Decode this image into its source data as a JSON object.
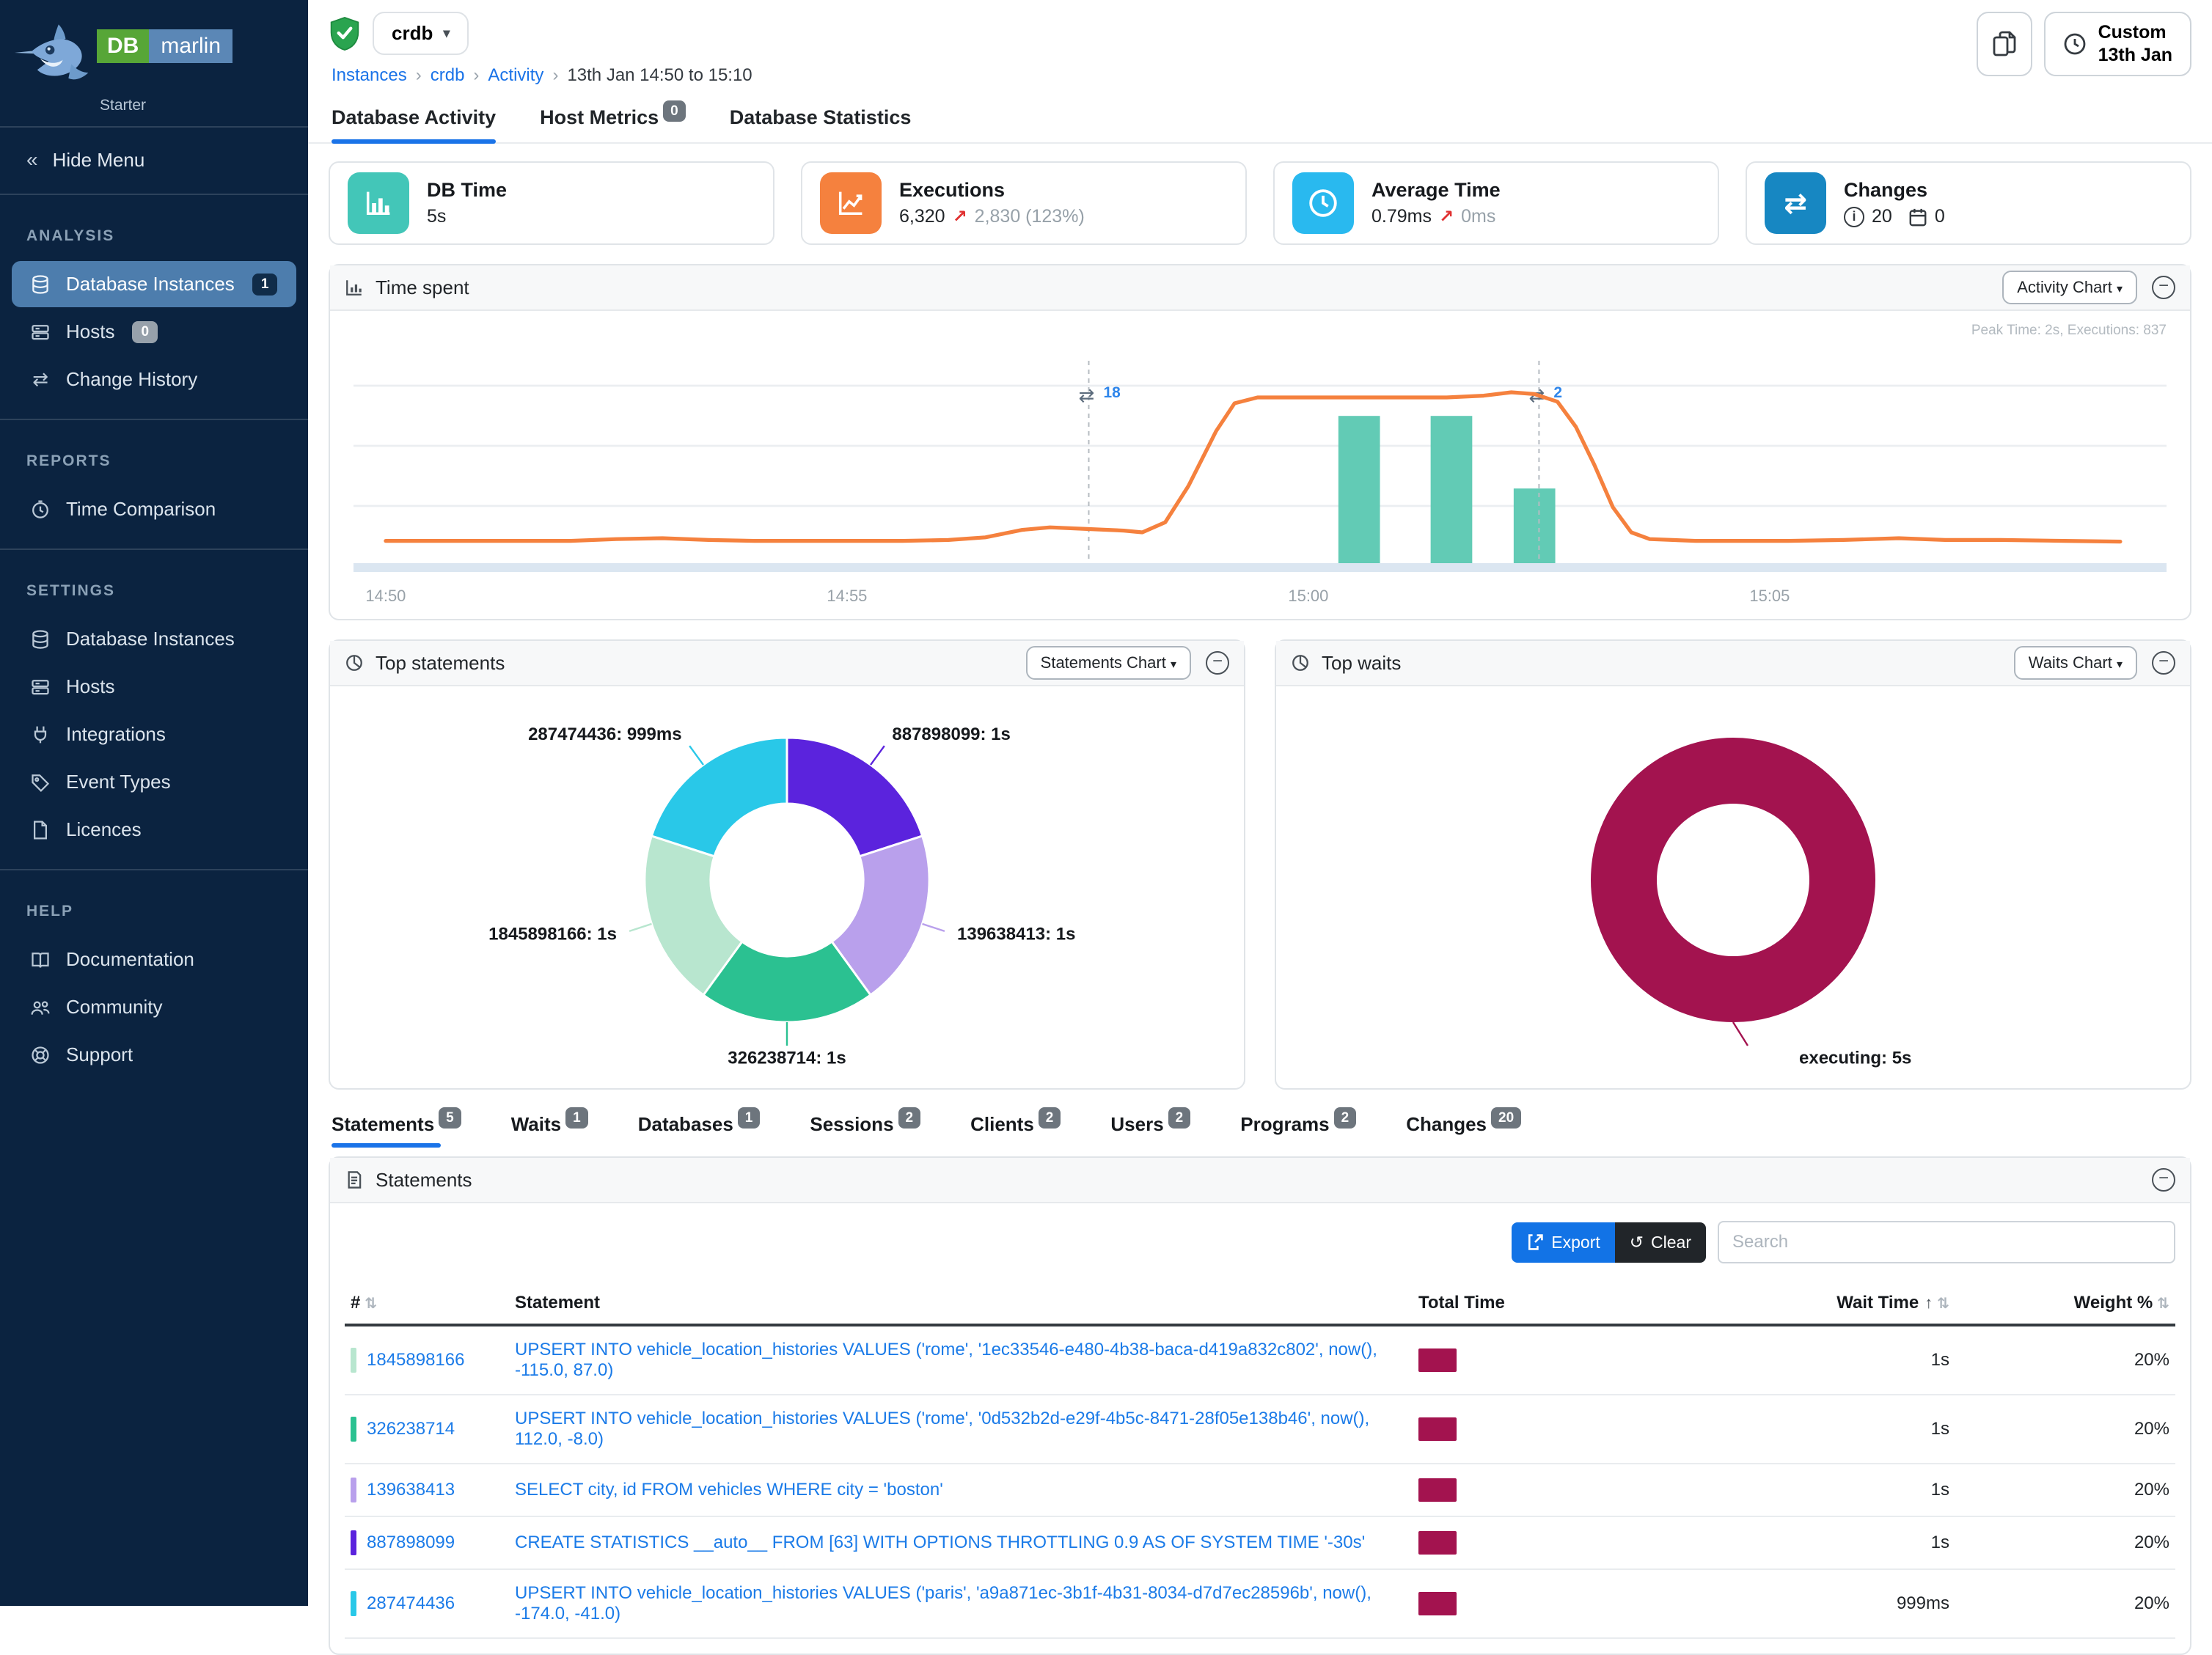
{
  "colors": {
    "accent": "#1a73e8",
    "sidebar_bg": "#0b2340",
    "sidebar_active": "#4d7dad",
    "total_time_bar": "#a3134f",
    "line_orange": "#f5813e",
    "bar_teal": "#62cbb5"
  },
  "brand": {
    "db": "DB",
    "marlin": "marlin",
    "edition": "Starter"
  },
  "sidebar": {
    "hide_menu": "Hide Menu",
    "sections": [
      {
        "title": "ANALYSIS",
        "items": [
          {
            "label": "Database Instances",
            "badge": "1"
          },
          {
            "label": "Hosts",
            "badge": "0"
          },
          {
            "label": "Change History"
          }
        ]
      },
      {
        "title": "REPORTS",
        "items": [
          {
            "label": "Time Comparison"
          }
        ]
      },
      {
        "title": "SETTINGS",
        "items": [
          {
            "label": "Database Instances"
          },
          {
            "label": "Hosts"
          },
          {
            "label": "Integrations"
          },
          {
            "label": "Event Types"
          },
          {
            "label": "Licences"
          }
        ]
      },
      {
        "title": "HELP",
        "items": [
          {
            "label": "Documentation"
          },
          {
            "label": "Community"
          },
          {
            "label": "Support"
          }
        ]
      }
    ]
  },
  "topbar": {
    "instance": "crdb",
    "breadcrumb": [
      "Instances",
      "crdb",
      "Activity",
      "13th Jan 14:50 to 15:10"
    ],
    "time_button": {
      "line1": "Custom",
      "line2": "13th Jan"
    }
  },
  "main_tabs": [
    {
      "label": "Database Activity"
    },
    {
      "label": "Host Metrics",
      "badge": "0"
    },
    {
      "label": "Database Statistics"
    }
  ],
  "cards": [
    {
      "title": "DB Time",
      "value": "5s",
      "icon_color": "#43c6b8"
    },
    {
      "title": "Executions",
      "value": "6,320",
      "delta": "2,830 (123%)",
      "icon_color": "#f5813e"
    },
    {
      "title": "Average Time",
      "value": "0.79ms",
      "delta": "0ms",
      "icon_color": "#29b9ef"
    },
    {
      "title": "Changes",
      "info_count": "20",
      "calendar_count": "0",
      "icon_color": "#1787c2"
    }
  ],
  "panels": {
    "time_spent": {
      "title": "Time spent",
      "button": "Activity Chart"
    },
    "top_statements": {
      "title": "Top statements",
      "button": "Statements Chart"
    },
    "top_waits": {
      "title": "Top waits",
      "button": "Waits Chart"
    },
    "statements": {
      "title": "Statements",
      "export": "Export",
      "clear": "Clear",
      "search_placeholder": "Search"
    }
  },
  "detail_tabs": [
    {
      "label": "Statements",
      "badge": "5"
    },
    {
      "label": "Waits",
      "badge": "1"
    },
    {
      "label": "Databases",
      "badge": "1"
    },
    {
      "label": "Sessions",
      "badge": "2"
    },
    {
      "label": "Clients",
      "badge": "2"
    },
    {
      "label": "Users",
      "badge": "2"
    },
    {
      "label": "Programs",
      "badge": "2"
    },
    {
      "label": "Changes",
      "badge": "20"
    }
  ],
  "table": {
    "headers": {
      "num": "#",
      "statement": "Statement",
      "total_time": "Total Time",
      "wait_time": "Wait Time",
      "weight": "Weight %"
    },
    "rows": [
      {
        "id": "1845898166",
        "color": "#b8e6cf",
        "statement": "UPSERT INTO vehicle_location_histories VALUES ('rome', '1ec33546-e480-4b38-baca-d419a832c802', now(), -115.0, 87.0)",
        "wait_time": "1s",
        "weight": "20%"
      },
      {
        "id": "326238714",
        "color": "#2bc191",
        "statement": "UPSERT INTO vehicle_location_histories VALUES ('rome', '0d532b2d-e29f-4b5c-8471-28f05e138b46', now(), 112.0, -8.0)",
        "wait_time": "1s",
        "weight": "20%"
      },
      {
        "id": "139638413",
        "color": "#b9a0ec",
        "statement": "SELECT city, id FROM vehicles WHERE city = 'boston'",
        "wait_time": "1s",
        "weight": "20%"
      },
      {
        "id": "887898099",
        "color": "#5b23dd",
        "statement": "CREATE STATISTICS __auto__ FROM [63] WITH OPTIONS THROTTLING 0.9 AS OF SYSTEM TIME '-30s'",
        "wait_time": "1s",
        "weight": "20%"
      },
      {
        "id": "287474436",
        "color": "#29c8e8",
        "statement": "UPSERT INTO vehicle_location_histories VALUES ('paris', 'a9a871ec-3b1f-4b31-8034-d7d7ec28596b', now(), -174.0, -41.0)",
        "wait_time": "999ms",
        "weight": "20%"
      }
    ]
  },
  "chart_data": [
    {
      "type": "line+bar",
      "title": "Time spent",
      "peak_note": "Peak Time: 2s, Executions: 837",
      "x_unit": "minutes after 14:50",
      "x_range": [
        0,
        18.8
      ],
      "ylim": [
        0,
        2.4
      ],
      "grid": true,
      "x_ticks": [
        {
          "t": 0,
          "label": "14:50"
        },
        {
          "t": 5,
          "label": "14:55"
        },
        {
          "t": 10,
          "label": "15:00"
        },
        {
          "t": 15,
          "label": "15:05"
        }
      ],
      "line_series": {
        "name": "DB Time (s)",
        "color": "#f5813e",
        "points": [
          [
            0,
            0.3
          ],
          [
            1,
            0.3
          ],
          [
            2,
            0.3
          ],
          [
            2.5,
            0.32
          ],
          [
            3,
            0.33
          ],
          [
            3.5,
            0.31
          ],
          [
            4,
            0.3
          ],
          [
            5,
            0.3
          ],
          [
            5.6,
            0.3
          ],
          [
            6.1,
            0.31
          ],
          [
            6.5,
            0.34
          ],
          [
            6.9,
            0.43
          ],
          [
            7.2,
            0.46
          ],
          [
            7.6,
            0.44
          ],
          [
            8.0,
            0.42
          ],
          [
            8.2,
            0.4
          ],
          [
            8.45,
            0.52
          ],
          [
            8.7,
            0.95
          ],
          [
            9.0,
            1.6
          ],
          [
            9.2,
            1.93
          ],
          [
            9.45,
            2.0
          ],
          [
            10,
            2.0
          ],
          [
            10.8,
            2.0
          ],
          [
            11.5,
            2.0
          ],
          [
            11.9,
            2.02
          ],
          [
            12.2,
            2.06
          ],
          [
            12.45,
            2.04
          ],
          [
            12.7,
            1.95
          ],
          [
            12.9,
            1.65
          ],
          [
            13.1,
            1.2
          ],
          [
            13.3,
            0.7
          ],
          [
            13.5,
            0.4
          ],
          [
            13.7,
            0.32
          ],
          [
            14.2,
            0.3
          ],
          [
            15.2,
            0.3
          ],
          [
            15.8,
            0.31
          ],
          [
            16.4,
            0.33
          ],
          [
            16.9,
            0.31
          ],
          [
            17.5,
            0.31
          ],
          [
            18.2,
            0.3
          ],
          [
            18.8,
            0.29
          ]
        ]
      },
      "bar_series": {
        "name": "Executions",
        "color": "#62cbb5",
        "bar_width_min": 0.45,
        "bars": [
          {
            "t": 10.55,
            "value": 1.78
          },
          {
            "t": 11.55,
            "value": 1.78
          },
          {
            "t": 12.45,
            "value": 0.92
          }
        ]
      },
      "annotations": [
        {
          "t": 7.62,
          "count": "18"
        },
        {
          "t": 12.5,
          "count": "2"
        }
      ]
    },
    {
      "type": "donut",
      "title": "Top statements",
      "slices": [
        {
          "label": "887898099: 1s",
          "value": 20,
          "color": "#5b23dd"
        },
        {
          "label": "139638413: 1s",
          "value": 20,
          "color": "#b9a0ec"
        },
        {
          "label": "326238714: 1s",
          "value": 20,
          "color": "#2bc191"
        },
        {
          "label": "1845898166: 1s",
          "value": 20,
          "color": "#b8e6cf"
        },
        {
          "label": "287474436: 999ms",
          "value": 20,
          "color": "#29c8e8"
        }
      ]
    },
    {
      "type": "donut",
      "title": "Top waits",
      "slices": [
        {
          "label": "executing: 5s",
          "value": 100,
          "color": "#a3134f"
        }
      ]
    }
  ]
}
